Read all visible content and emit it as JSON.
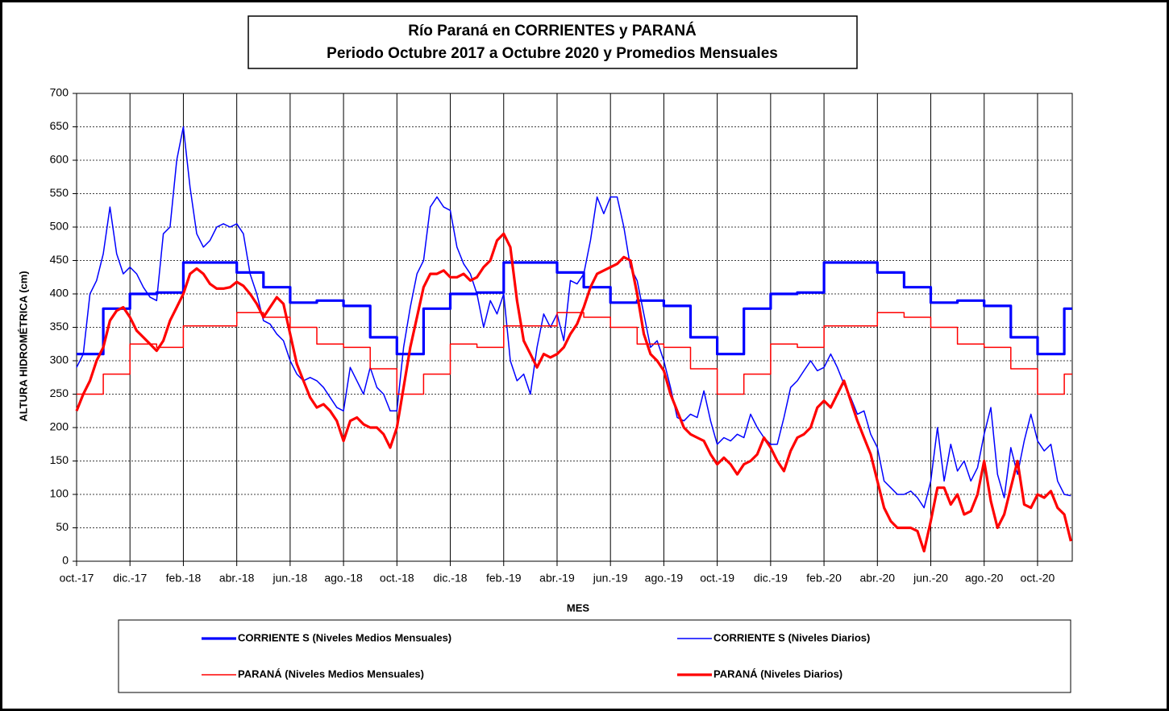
{
  "chart_data": {
    "type": "line",
    "title": "Río Paraná en CORRIENTES y PARANÁ",
    "subtitle": "Periodo Octubre 2017 a Octubre 2020 y Promedios Mensuales",
    "x_label": "MES",
    "y_label": "ALTURA HIDROMÉTRICA (cm)",
    "xlim": [
      0,
      37.3
    ],
    "ylim": [
      0,
      700
    ],
    "yticks": [
      0,
      50,
      100,
      150,
      200,
      250,
      300,
      350,
      400,
      450,
      500,
      550,
      600,
      650,
      700
    ],
    "xticks": [
      {
        "value": 0,
        "label": "oct.-17"
      },
      {
        "value": 2,
        "label": "dic.-17"
      },
      {
        "value": 4,
        "label": "feb.-18"
      },
      {
        "value": 6,
        "label": "abr.-18"
      },
      {
        "value": 8,
        "label": "jun.-18"
      },
      {
        "value": 10,
        "label": "ago.-18"
      },
      {
        "value": 12,
        "label": "oct.-18"
      },
      {
        "value": 14,
        "label": "dic.-18"
      },
      {
        "value": 16,
        "label": "feb.-19"
      },
      {
        "value": 18,
        "label": "abr.-19"
      },
      {
        "value": 20,
        "label": "jun.-19"
      },
      {
        "value": 22,
        "label": "ago.-19"
      },
      {
        "value": 24,
        "label": "oct.-19"
      },
      {
        "value": 26,
        "label": "dic.-19"
      },
      {
        "value": 28,
        "label": "feb.-20"
      },
      {
        "value": 30,
        "label": "abr.-20"
      },
      {
        "value": 32,
        "label": "jun.-20"
      },
      {
        "value": 34,
        "label": "ago.-20"
      },
      {
        "value": 36,
        "label": "oct.-20"
      }
    ],
    "grid": true,
    "x": [
      0,
      0.25,
      0.5,
      0.75,
      1,
      1.25,
      1.5,
      1.75,
      2,
      2.25,
      2.5,
      2.75,
      3,
      3.25,
      3.5,
      3.75,
      4,
      4.25,
      4.5,
      4.75,
      5,
      5.25,
      5.5,
      5.75,
      6,
      6.25,
      6.5,
      6.75,
      7,
      7.25,
      7.5,
      7.75,
      8,
      8.25,
      8.5,
      8.75,
      9,
      9.25,
      9.5,
      9.75,
      10,
      10.25,
      10.5,
      10.75,
      11,
      11.25,
      11.5,
      11.75,
      12,
      12.25,
      12.5,
      12.75,
      13,
      13.25,
      13.5,
      13.75,
      14,
      14.25,
      14.5,
      14.75,
      15,
      15.25,
      15.5,
      15.75,
      16,
      16.25,
      16.5,
      16.75,
      17,
      17.25,
      17.5,
      17.75,
      18,
      18.25,
      18.5,
      18.75,
      19,
      19.25,
      19.5,
      19.75,
      20,
      20.25,
      20.5,
      20.75,
      21,
      21.25,
      21.5,
      21.75,
      22,
      22.25,
      22.5,
      22.75,
      23,
      23.25,
      23.5,
      23.75,
      24,
      24.25,
      24.5,
      24.75,
      25,
      25.25,
      25.5,
      25.75,
      26,
      26.25,
      26.5,
      26.75,
      27,
      27.25,
      27.5,
      27.75,
      28,
      28.25,
      28.5,
      28.75,
      29,
      29.25,
      29.5,
      29.75,
      30,
      30.25,
      30.5,
      30.75,
      31,
      31.25,
      31.5,
      31.75,
      32,
      32.25,
      32.5,
      32.75,
      33,
      33.25,
      33.5,
      33.75,
      34,
      34.25,
      34.5,
      34.75,
      35,
      35.25,
      35.5,
      35.75,
      36,
      36.25,
      36.5,
      36.75,
      37,
      37.25
    ],
    "series": [
      {
        "name": "CORRIENTE S (Niveles Medios Mensuales)",
        "color": "#0000ff",
        "width": 3.2,
        "step": true,
        "x": [
          0,
          1,
          2,
          3,
          4,
          5,
          6,
          7,
          8,
          9,
          10,
          11,
          12,
          13,
          14,
          15,
          16,
          17,
          18,
          19,
          20,
          21,
          22,
          23,
          24,
          25,
          26,
          27,
          28,
          29,
          30,
          31,
          32,
          33,
          34,
          35,
          36,
          37
        ],
        "values": [
          310,
          378,
          400,
          402,
          447,
          447,
          432,
          410,
          387,
          390,
          382,
          335,
          310,
          378,
          400,
          402,
          447,
          447,
          432,
          410,
          387,
          390,
          382,
          335,
          310,
          378,
          400,
          402,
          447,
          447,
          432,
          410,
          387,
          390,
          382,
          335,
          310,
          378
        ]
      },
      {
        "name": "CORRIENTE S (Niveles Diarios)",
        "color": "#0000ff",
        "width": 1.5,
        "step": false,
        "values": [
          290,
          310,
          400,
          420,
          460,
          530,
          460,
          430,
          440,
          430,
          410,
          395,
          390,
          490,
          500,
          600,
          650,
          560,
          490,
          470,
          480,
          500,
          505,
          500,
          505,
          490,
          430,
          400,
          360,
          355,
          340,
          330,
          300,
          280,
          270,
          275,
          270,
          260,
          245,
          230,
          225,
          290,
          270,
          250,
          290,
          260,
          250,
          225,
          225,
          320,
          380,
          430,
          450,
          530,
          545,
          530,
          525,
          470,
          445,
          430,
          400,
          350,
          390,
          370,
          400,
          300,
          270,
          280,
          250,
          320,
          370,
          350,
          370,
          330,
          420,
          415,
          430,
          480,
          545,
          520,
          545,
          545,
          500,
          440,
          420,
          370,
          320,
          330,
          300,
          260,
          215,
          210,
          220,
          215,
          255,
          210,
          175,
          185,
          180,
          190,
          185,
          220,
          200,
          185,
          175,
          175,
          215,
          260,
          270,
          285,
          300,
          285,
          290,
          310,
          290,
          265,
          245,
          220,
          225,
          190,
          170,
          120,
          110,
          100,
          100,
          105,
          95,
          80,
          120,
          200,
          120,
          175,
          135,
          150,
          120,
          140,
          190,
          230,
          130,
          95,
          170,
          130,
          180,
          220,
          180,
          165,
          175,
          120,
          100,
          98
        ]
      },
      {
        "name": "PARANÁ (Niveles Medios Mensuales)",
        "color": "#ff0000",
        "width": 1.5,
        "step": true,
        "x": [
          0,
          1,
          2,
          3,
          4,
          5,
          6,
          7,
          8,
          9,
          10,
          11,
          12,
          13,
          14,
          15,
          16,
          17,
          18,
          19,
          20,
          21,
          22,
          23,
          24,
          25,
          26,
          27,
          28,
          29,
          30,
          31,
          32,
          33,
          34,
          35,
          36,
          37
        ],
        "values": [
          250,
          280,
          325,
          320,
          352,
          352,
          372,
          365,
          350,
          325,
          320,
          288,
          250,
          280,
          325,
          320,
          352,
          352,
          372,
          365,
          350,
          325,
          320,
          288,
          250,
          280,
          325,
          320,
          352,
          352,
          372,
          365,
          350,
          325,
          320,
          288,
          250,
          280
        ]
      },
      {
        "name": "PARANÁ (Niveles Diarios)",
        "color": "#ff0000",
        "width": 3.2,
        "step": false,
        "values": [
          225,
          250,
          270,
          300,
          320,
          360,
          375,
          380,
          365,
          345,
          335,
          325,
          315,
          330,
          360,
          380,
          400,
          430,
          438,
          430,
          415,
          408,
          408,
          410,
          418,
          412,
          400,
          385,
          365,
          380,
          395,
          385,
          340,
          295,
          270,
          245,
          230,
          235,
          225,
          210,
          180,
          210,
          215,
          205,
          200,
          200,
          190,
          170,
          200,
          260,
          320,
          365,
          410,
          430,
          430,
          435,
          425,
          425,
          430,
          420,
          425,
          440,
          450,
          480,
          490,
          470,
          390,
          330,
          310,
          290,
          310,
          305,
          310,
          320,
          340,
          355,
          380,
          410,
          430,
          435,
          440,
          445,
          455,
          450,
          400,
          340,
          310,
          300,
          285,
          250,
          225,
          200,
          190,
          185,
          180,
          160,
          145,
          155,
          145,
          130,
          145,
          150,
          160,
          185,
          170,
          150,
          135,
          165,
          185,
          190,
          200,
          230,
          240,
          230,
          250,
          270,
          240,
          210,
          185,
          160,
          120,
          80,
          60,
          50,
          50,
          50,
          45,
          15,
          60,
          110,
          110,
          85,
          100,
          70,
          75,
          100,
          150,
          90,
          50,
          70,
          110,
          150,
          85,
          80,
          100,
          95,
          105,
          80,
          70,
          30
        ]
      }
    ]
  }
}
